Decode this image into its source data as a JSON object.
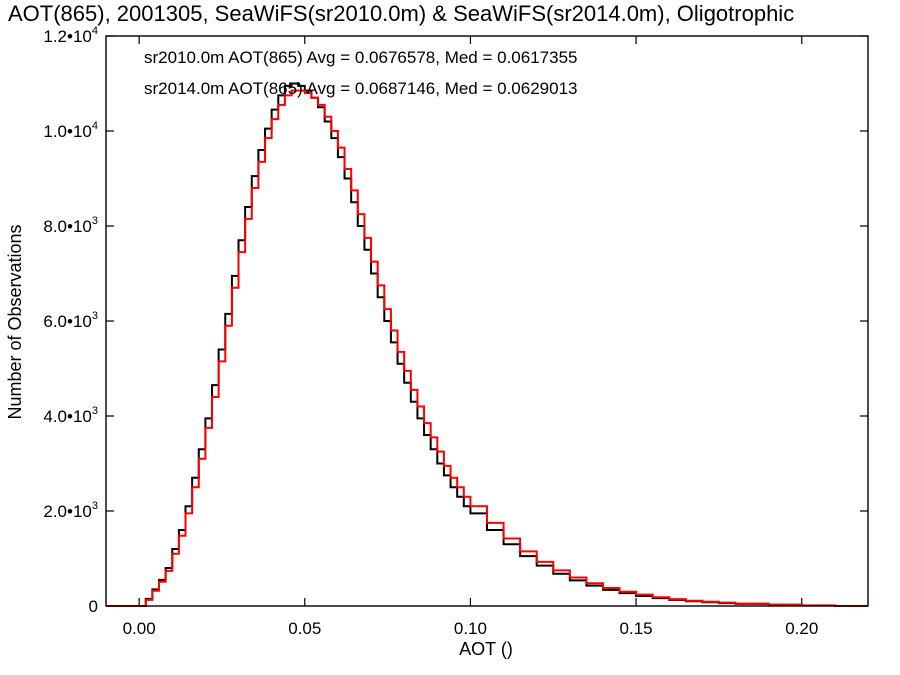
{
  "chart_data": {
    "type": "line",
    "title": "AOT(865), 2001305, SeaWiFS(sr2010.0m) & SeaWiFS(sr2014.0m), Oligotrophic",
    "xlabel": "AOT ()",
    "ylabel": "Number of Observations",
    "xlim": [
      -0.01,
      0.22
    ],
    "ylim": [
      0,
      12000
    ],
    "x_ticks": [
      {
        "value": 0.0,
        "label": "0.00"
      },
      {
        "value": 0.05,
        "label": "0.05"
      },
      {
        "value": 0.1,
        "label": "0.10"
      },
      {
        "value": 0.15,
        "label": "0.15"
      },
      {
        "value": 0.2,
        "label": "0.20"
      }
    ],
    "y_ticks": [
      {
        "value": 0,
        "mantissa": "0",
        "exponent": ""
      },
      {
        "value": 2000,
        "mantissa": "2.0•10",
        "exponent": "3"
      },
      {
        "value": 4000,
        "mantissa": "4.0•10",
        "exponent": "3"
      },
      {
        "value": 6000,
        "mantissa": "6.0•10",
        "exponent": "3"
      },
      {
        "value": 8000,
        "mantissa": "8.0•10",
        "exponent": "3"
      },
      {
        "value": 10000,
        "mantissa": "1.0•10",
        "exponent": "4"
      },
      {
        "value": 12000,
        "mantissa": "1.2•10",
        "exponent": "4"
      }
    ],
    "grid": false,
    "legend": "top-left",
    "series": [
      {
        "name": "sr2010.0m AOT(865) Avg = 0.0676578, Med = 0.0617355",
        "color": "#000000",
        "x": [
          -0.01,
          0.0,
          0.002,
          0.004,
          0.006,
          0.008,
          0.01,
          0.012,
          0.014,
          0.016,
          0.018,
          0.02,
          0.022,
          0.024,
          0.026,
          0.028,
          0.03,
          0.032,
          0.034,
          0.036,
          0.038,
          0.04,
          0.042,
          0.044,
          0.046,
          0.048,
          0.05,
          0.052,
          0.054,
          0.056,
          0.058,
          0.06,
          0.062,
          0.064,
          0.066,
          0.068,
          0.07,
          0.072,
          0.074,
          0.076,
          0.078,
          0.08,
          0.082,
          0.084,
          0.086,
          0.088,
          0.09,
          0.092,
          0.094,
          0.096,
          0.098,
          0.1,
          0.105,
          0.11,
          0.115,
          0.12,
          0.125,
          0.13,
          0.135,
          0.14,
          0.145,
          0.15,
          0.155,
          0.16,
          0.165,
          0.17,
          0.175,
          0.18,
          0.19,
          0.2,
          0.21,
          0.22
        ],
        "values": [
          0,
          0,
          150,
          350,
          550,
          800,
          1200,
          1600,
          2100,
          2700,
          3300,
          3950,
          4650,
          5400,
          6150,
          6950,
          7700,
          8400,
          9050,
          9600,
          10050,
          10450,
          10750,
          10950,
          11000,
          10950,
          10850,
          10700,
          10500,
          10200,
          9850,
          9450,
          9000,
          8500,
          8000,
          7500,
          7000,
          6500,
          6000,
          5550,
          5100,
          4700,
          4300,
          3950,
          3600,
          3300,
          3000,
          2750,
          2500,
          2300,
          2100,
          1950,
          1600,
          1300,
          1050,
          850,
          680,
          540,
          430,
          340,
          270,
          210,
          165,
          130,
          100,
          80,
          60,
          45,
          25,
          10,
          0,
          0
        ]
      },
      {
        "name": "sr2014.0m AOT(865) Avg = 0.0687146, Med = 0.0629013",
        "color": "#ff0000",
        "x": [
          -0.01,
          0.0,
          0.002,
          0.004,
          0.006,
          0.008,
          0.01,
          0.012,
          0.014,
          0.016,
          0.018,
          0.02,
          0.022,
          0.024,
          0.026,
          0.028,
          0.03,
          0.032,
          0.034,
          0.036,
          0.038,
          0.04,
          0.042,
          0.044,
          0.046,
          0.048,
          0.05,
          0.052,
          0.054,
          0.056,
          0.058,
          0.06,
          0.062,
          0.064,
          0.066,
          0.068,
          0.07,
          0.072,
          0.074,
          0.076,
          0.078,
          0.08,
          0.082,
          0.084,
          0.086,
          0.088,
          0.09,
          0.092,
          0.094,
          0.096,
          0.098,
          0.1,
          0.105,
          0.11,
          0.115,
          0.12,
          0.125,
          0.13,
          0.135,
          0.14,
          0.145,
          0.15,
          0.155,
          0.16,
          0.165,
          0.17,
          0.175,
          0.18,
          0.19,
          0.2,
          0.21,
          0.22
        ],
        "values": [
          0,
          0,
          130,
          320,
          510,
          740,
          1100,
          1480,
          1950,
          2500,
          3100,
          3750,
          4400,
          5150,
          5900,
          6700,
          7450,
          8150,
          8800,
          9350,
          9850,
          10250,
          10550,
          10750,
          10850,
          10850,
          10800,
          10700,
          10550,
          10300,
          10000,
          9650,
          9200,
          8750,
          8250,
          7750,
          7250,
          6750,
          6250,
          5800,
          5350,
          4950,
          4550,
          4200,
          3850,
          3550,
          3250,
          2950,
          2700,
          2500,
          2300,
          2100,
          1750,
          1420,
          1150,
          930,
          750,
          600,
          480,
          380,
          300,
          240,
          185,
          145,
          110,
          90,
          70,
          50,
          30,
          12,
          0,
          0
        ]
      }
    ]
  }
}
